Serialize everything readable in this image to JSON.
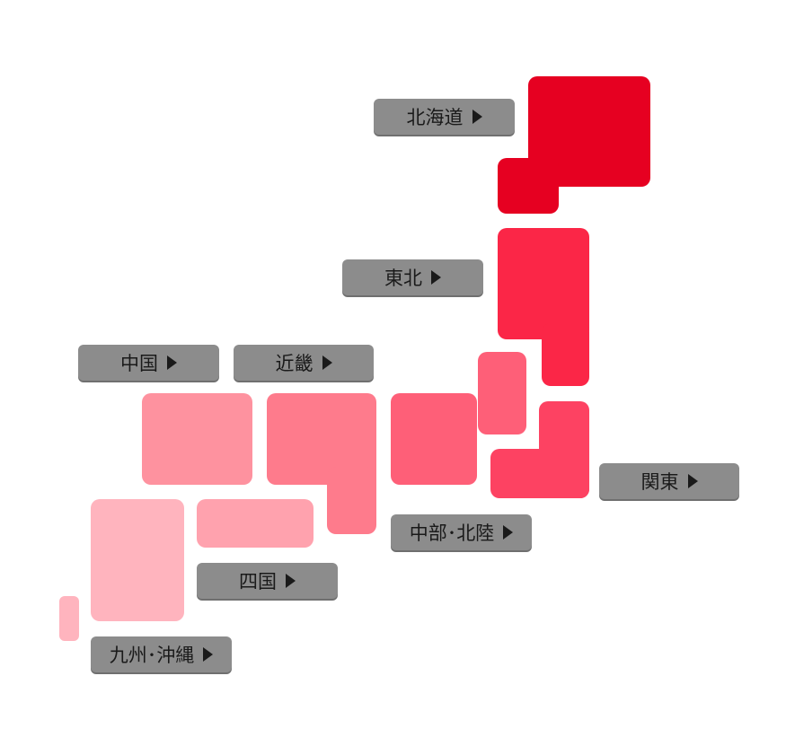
{
  "regions": {
    "hokkaido": {
      "label": "北海道",
      "color": "#e60021"
    },
    "tohoku": {
      "label": "東北",
      "color": "#fb2647"
    },
    "kanto": {
      "label": "関東",
      "color": "#fd4262"
    },
    "chubu": {
      "label": "中部･北陸",
      "color": "#fe5f78"
    },
    "kinki": {
      "label": "近畿",
      "color": "#fe7b8c"
    },
    "chugoku": {
      "label": "中国",
      "color": "#fe929f"
    },
    "shikoku": {
      "label": "四国",
      "color": "#ffa2ae"
    },
    "kyushu": {
      "label": "九州･沖縄",
      "color": "#ffb4be"
    }
  },
  "icons": {
    "label_arrow": "triangle-right-icon"
  }
}
